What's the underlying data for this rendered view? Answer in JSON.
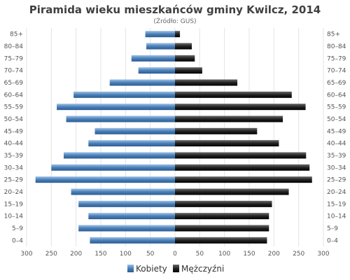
{
  "chart_data": {
    "type": "bar",
    "orientation": "horizontal-population-pyramid",
    "title": "Piramida wieku mieszkańców gminy Kwilcz, 2014",
    "subtitle": "(Źródło: GUS)",
    "categories": [
      "85+",
      "80–84",
      "75–79",
      "70–74",
      "65–69",
      "60–64",
      "55–59",
      "50–54",
      "45–49",
      "40–44",
      "35–39",
      "30–34",
      "25–29",
      "20–24",
      "15–19",
      "10–14",
      "5–9",
      "0–4"
    ],
    "series": [
      {
        "name": "Kobiety",
        "color": "#4a7fb8",
        "side": "left",
        "values": [
          60,
          58,
          88,
          74,
          132,
          205,
          239,
          220,
          162,
          175,
          225,
          250,
          282,
          210,
          195,
          175,
          195,
          172
        ]
      },
      {
        "name": "Mężczyźni",
        "color": "#222222",
        "side": "right",
        "values": [
          10,
          34,
          40,
          55,
          126,
          236,
          264,
          218,
          166,
          210,
          265,
          272,
          277,
          230,
          196,
          190,
          190,
          186
        ]
      }
    ],
    "xlim": [
      -300,
      300
    ],
    "x_ticks": [
      -300,
      -250,
      -200,
      -150,
      -100,
      -50,
      0,
      50,
      100,
      150,
      200,
      250,
      300
    ],
    "x_tick_labels": [
      "300",
      "250",
      "200",
      "150",
      "100",
      "50",
      "0",
      "50",
      "100",
      "150",
      "200",
      "250",
      "300"
    ],
    "grid": true,
    "legend": "bottom-center"
  }
}
